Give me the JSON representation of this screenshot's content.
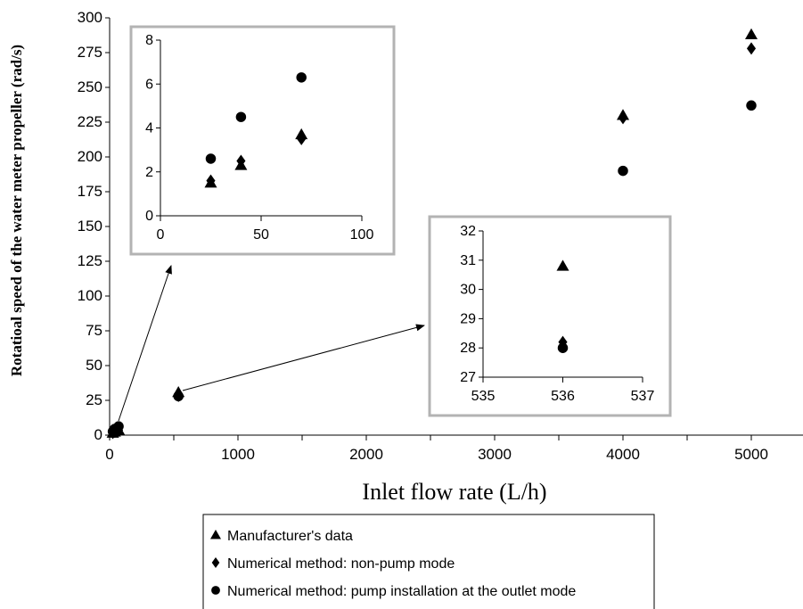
{
  "chart_data": [
    {
      "type": "scatter",
      "panel": "main",
      "xlabel": "Inlet flow rate (L/h)",
      "ylabel": "Rotatioal speed of the water meter propeller (rad/s)",
      "xlim": [
        0,
        5400
      ],
      "ylim": [
        0,
        300
      ],
      "xticks": [
        "0",
        "1000",
        "2000",
        "3000",
        "4000",
        "5000"
      ],
      "yticks": [
        "0",
        "25",
        "50",
        "75",
        "100",
        "125",
        "150",
        "175",
        "200",
        "225",
        "250",
        "275",
        "300"
      ],
      "grid": false,
      "series": [
        {
          "name": "Manufacturer's data",
          "marker": "triangle",
          "points": [
            [
              25,
              1.5
            ],
            [
              40,
              2.3
            ],
            [
              70,
              3.7
            ],
            [
              536,
              30.8
            ],
            [
              4000,
              230
            ],
            [
              5000,
              288
            ]
          ]
        },
        {
          "name": "Numerical method: non-pump mode",
          "marker": "diamond",
          "points": [
            [
              25,
              1.6
            ],
            [
              40,
              2.5
            ],
            [
              70,
              3.5
            ],
            [
              536,
              28.2
            ],
            [
              4000,
              228
            ],
            [
              5000,
              278
            ]
          ]
        },
        {
          "name": "Numerical method: pump installation at the outlet mode",
          "marker": "circle",
          "points": [
            [
              25,
              2.6
            ],
            [
              40,
              4.5
            ],
            [
              70,
              6.3
            ],
            [
              536,
              28
            ],
            [
              4000,
              190
            ],
            [
              5000,
              237
            ]
          ]
        }
      ],
      "legend_position": "bottom"
    },
    {
      "type": "scatter",
      "panel": "inset-low-flow",
      "xlim": [
        0,
        100
      ],
      "ylim": [
        0,
        8
      ],
      "xticks": [
        "0",
        "50",
        "100"
      ],
      "yticks": [
        "0",
        "2",
        "4",
        "6",
        "8"
      ],
      "series": [
        {
          "name": "Manufacturer's data",
          "marker": "triangle",
          "points": [
            [
              25,
              1.5
            ],
            [
              40,
              2.3
            ],
            [
              70,
              3.7
            ]
          ]
        },
        {
          "name": "Numerical method: non-pump mode",
          "marker": "diamond",
          "points": [
            [
              25,
              1.6
            ],
            [
              40,
              2.5
            ],
            [
              70,
              3.5
            ]
          ]
        },
        {
          "name": "Numerical method: pump installation at the outlet mode",
          "marker": "circle",
          "points": [
            [
              25,
              2.6
            ],
            [
              40,
              4.5
            ],
            [
              70,
              6.3
            ]
          ]
        }
      ]
    },
    {
      "type": "scatter",
      "panel": "inset-536",
      "xlim": [
        535,
        537
      ],
      "ylim": [
        27,
        32
      ],
      "xticks": [
        "535",
        "536",
        "537"
      ],
      "yticks": [
        "27",
        "28",
        "29",
        "30",
        "31",
        "32"
      ],
      "series": [
        {
          "name": "Manufacturer's data",
          "marker": "triangle",
          "points": [
            [
              536,
              30.8
            ]
          ]
        },
        {
          "name": "Numerical method: non-pump mode",
          "marker": "diamond",
          "points": [
            [
              536,
              28.2
            ]
          ]
        },
        {
          "name": "Numerical method: pump installation at the outlet mode",
          "marker": "circle",
          "points": [
            [
              536,
              28
            ]
          ]
        }
      ]
    }
  ],
  "legend": {
    "items": [
      {
        "label": "Manufacturer's data",
        "marker": "triangle"
      },
      {
        "label": "Numerical method: non-pump mode",
        "marker": "diamond"
      },
      {
        "label": "Numerical method: pump installation at the outlet mode",
        "marker": "circle"
      }
    ]
  },
  "colors": {
    "marker": "#000000",
    "inset_border": "#b3b3b3",
    "axis": "#000000"
  }
}
